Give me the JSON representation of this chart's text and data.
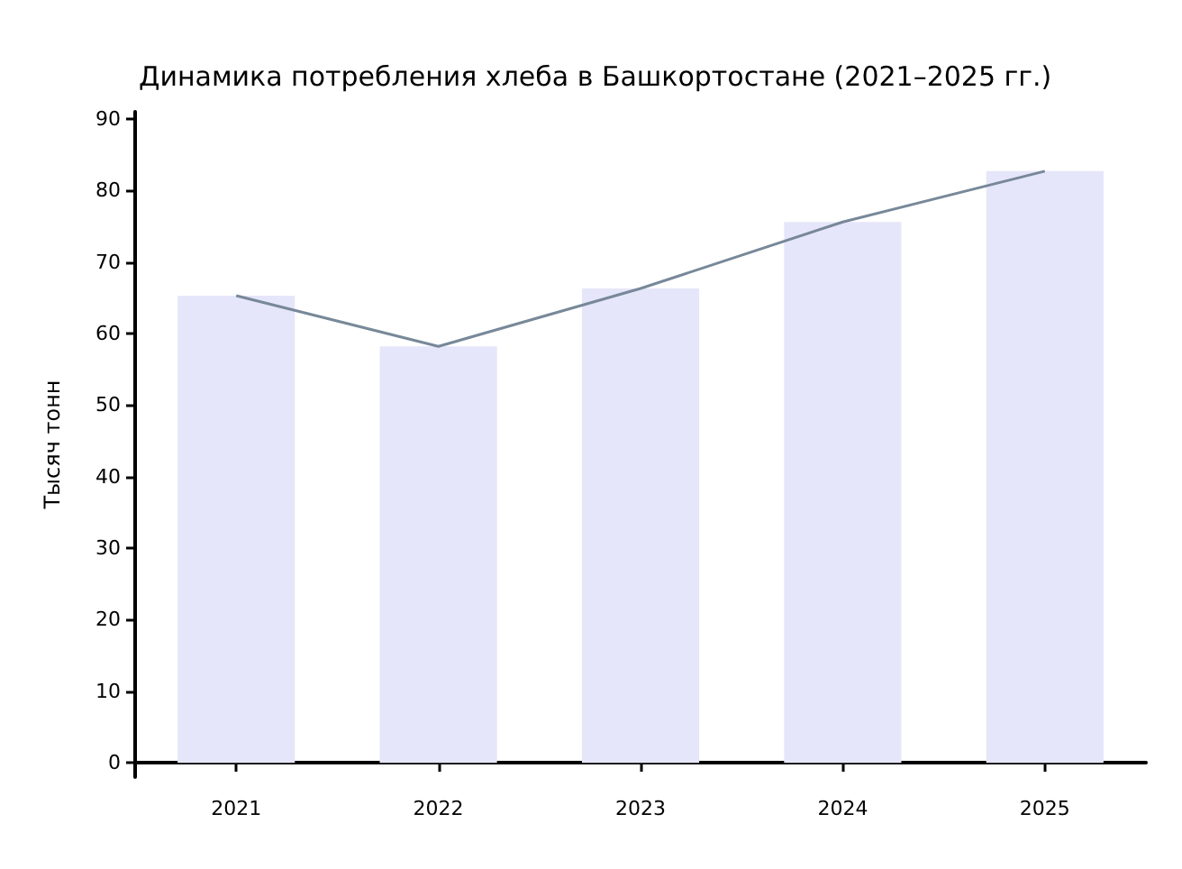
{
  "chart_data": {
    "type": "bar",
    "title": "Динамика потребления хлеба в Башкортостане (2021–2025 гг.)",
    "ylabel": "Тысяч тонн",
    "categories": [
      "2021",
      "2022",
      "2023",
      "2024",
      "2025"
    ],
    "series": [
      {
        "color": "#e6e6fa",
        "values": [
          65.3,
          58.2,
          66.3,
          75.6,
          82.7
        ]
      },
      {
        "type": "line",
        "color": "#778899",
        "values": [
          65.3,
          58.2,
          66.3,
          75.6,
          82.7
        ]
      }
    ],
    "ylim": [
      -2,
      91
    ],
    "yticks": [
      0,
      10,
      20,
      30,
      40,
      50,
      60,
      70,
      80,
      90
    ],
    "grid": false,
    "marker": "none",
    "line_style": "solid"
  }
}
